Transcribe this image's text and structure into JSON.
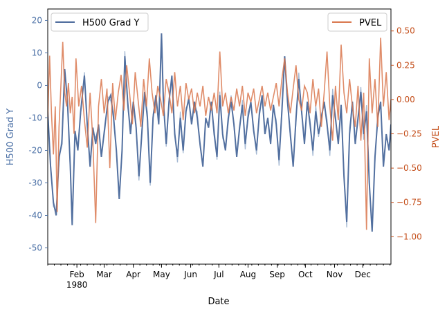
{
  "chart_data": {
    "type": "line",
    "xlabel": "Date",
    "x_tick_labels": [
      {
        "label": "Feb",
        "sublabel": "1980",
        "date": "1980-02-01"
      },
      {
        "label": "Mar",
        "date": "1980-03-01"
      },
      {
        "label": "Apr",
        "date": "1980-04-01"
      },
      {
        "label": "May",
        "date": "1980-05-01"
      },
      {
        "label": "Jun",
        "date": "1980-06-01"
      },
      {
        "label": "Jul",
        "date": "1980-07-01"
      },
      {
        "label": "Aug",
        "date": "1980-08-01"
      },
      {
        "label": "Sep",
        "date": "1980-09-01"
      },
      {
        "label": "Oct",
        "date": "1980-10-01"
      },
      {
        "label": "Nov",
        "date": "1980-11-01"
      },
      {
        "label": "Dec",
        "date": "1980-12-01"
      }
    ],
    "xlim": [
      "1980-01-01",
      "1980-12-31"
    ],
    "y_left": {
      "label": "H500 Grad Y",
      "ylim": [
        -55,
        23.5
      ],
      "ticks": [
        -50,
        -40,
        -30,
        -20,
        -10,
        0,
        10,
        20
      ],
      "color": "#4a6fa5"
    },
    "y_right": {
      "label": "PVEL",
      "ylim": [
        -1.2,
        0.66
      ],
      "ticks": [
        -1.0,
        -0.75,
        -0.5,
        -0.25,
        0.0,
        0.25,
        0.5
      ],
      "color": "#c44e1a"
    },
    "legend_left": {
      "placement": "top-left",
      "entry": "H500 Grad Y"
    },
    "legend_right": {
      "placement": "top-right",
      "entry": "PVEL"
    },
    "grid": false,
    "series": [
      {
        "name": "H500 Grad Y",
        "axis": "left",
        "color": "#4c6a9c",
        "raw_color": "#8fa8c8",
        "points": [
          [
            "1980-01-01",
            -8
          ],
          [
            "1980-01-04",
            -25
          ],
          [
            "1980-01-07",
            -36
          ],
          [
            "1980-01-10",
            -40
          ],
          [
            "1980-01-13",
            -22
          ],
          [
            "1980-01-16",
            -18
          ],
          [
            "1980-01-19",
            5
          ],
          [
            "1980-01-22",
            -5
          ],
          [
            "1980-01-25",
            -25
          ],
          [
            "1980-01-27",
            -43
          ],
          [
            "1980-01-30",
            -14
          ],
          [
            "1980-02-02",
            -20
          ],
          [
            "1980-02-05",
            -8
          ],
          [
            "1980-02-09",
            3
          ],
          [
            "1980-02-12",
            -12
          ],
          [
            "1980-02-15",
            -25
          ],
          [
            "1980-02-18",
            -13
          ],
          [
            "1980-02-21",
            -18
          ],
          [
            "1980-02-24",
            -12
          ],
          [
            "1980-02-27",
            -22
          ],
          [
            "1980-03-02",
            -12
          ],
          [
            "1980-03-05",
            -5
          ],
          [
            "1980-03-08",
            -3
          ],
          [
            "1980-03-11",
            -10
          ],
          [
            "1980-03-14",
            -20
          ],
          [
            "1980-03-17",
            -35
          ],
          [
            "1980-03-20",
            -20
          ],
          [
            "1980-03-23",
            9
          ],
          [
            "1980-03-26",
            -5
          ],
          [
            "1980-03-29",
            -15
          ],
          [
            "1980-04-01",
            -5
          ],
          [
            "1980-04-04",
            -13
          ],
          [
            "1980-04-07",
            -28
          ],
          [
            "1980-04-10",
            -15
          ],
          [
            "1980-04-13",
            -2
          ],
          [
            "1980-04-16",
            -10
          ],
          [
            "1980-04-19",
            -30
          ],
          [
            "1980-04-22",
            -10
          ],
          [
            "1980-04-25",
            -3
          ],
          [
            "1980-04-28",
            -12
          ],
          [
            "1980-05-01",
            16
          ],
          [
            "1980-05-03",
            -5
          ],
          [
            "1980-05-06",
            -18
          ],
          [
            "1980-05-09",
            -5
          ],
          [
            "1980-05-12",
            3
          ],
          [
            "1980-05-15",
            -15
          ],
          [
            "1980-05-18",
            -22
          ],
          [
            "1980-05-21",
            -10
          ],
          [
            "1980-05-24",
            -20
          ],
          [
            "1980-05-27",
            -8
          ],
          [
            "1980-05-30",
            -4
          ],
          [
            "1980-06-02",
            -12
          ],
          [
            "1980-06-05",
            -5
          ],
          [
            "1980-06-08",
            -10
          ],
          [
            "1980-06-11",
            -18
          ],
          [
            "1980-06-14",
            -25
          ],
          [
            "1980-06-17",
            -10
          ],
          [
            "1980-06-20",
            -13
          ],
          [
            "1980-06-23",
            -5
          ],
          [
            "1980-06-26",
            -15
          ],
          [
            "1980-06-29",
            -22
          ],
          [
            "1980-07-02",
            -3
          ],
          [
            "1980-07-05",
            -15
          ],
          [
            "1980-07-08",
            -20
          ],
          [
            "1980-07-11",
            -10
          ],
          [
            "1980-07-14",
            -5
          ],
          [
            "1980-07-17",
            -12
          ],
          [
            "1980-07-20",
            -22
          ],
          [
            "1980-07-23",
            -13
          ],
          [
            "1980-07-26",
            -6
          ],
          [
            "1980-07-29",
            -18
          ],
          [
            "1980-08-01",
            -10
          ],
          [
            "1980-08-04",
            -5
          ],
          [
            "1980-08-07",
            -14
          ],
          [
            "1980-08-10",
            -20
          ],
          [
            "1980-08-13",
            -9
          ],
          [
            "1980-08-16",
            -3
          ],
          [
            "1980-08-19",
            -15
          ],
          [
            "1980-08-22",
            -10
          ],
          [
            "1980-08-25",
            -18
          ],
          [
            "1980-08-28",
            -6
          ],
          [
            "1980-08-31",
            -12
          ],
          [
            "1980-09-03",
            -23
          ],
          [
            "1980-09-06",
            -8
          ],
          [
            "1980-09-09",
            9
          ],
          [
            "1980-09-12",
            -5
          ],
          [
            "1980-09-15",
            -15
          ],
          [
            "1980-09-18",
            -25
          ],
          [
            "1980-09-21",
            -10
          ],
          [
            "1980-09-24",
            2
          ],
          [
            "1980-09-27",
            -8
          ],
          [
            "1980-09-30",
            -18
          ],
          [
            "1980-10-03",
            -5
          ],
          [
            "1980-10-06",
            -12
          ],
          [
            "1980-10-09",
            -20
          ],
          [
            "1980-10-12",
            -8
          ],
          [
            "1980-10-15",
            -15
          ],
          [
            "1980-10-18",
            -10
          ],
          [
            "1980-10-21",
            -5
          ],
          [
            "1980-10-24",
            -12
          ],
          [
            "1980-10-27",
            -20
          ],
          [
            "1980-10-30",
            -3
          ],
          [
            "1980-11-02",
            -10
          ],
          [
            "1980-11-05",
            -18
          ],
          [
            "1980-11-08",
            -6
          ],
          [
            "1980-11-11",
            -28
          ],
          [
            "1980-11-14",
            -42
          ],
          [
            "1980-11-17",
            -15
          ],
          [
            "1980-11-20",
            -5
          ],
          [
            "1980-11-23",
            -18
          ],
          [
            "1980-11-26",
            -10
          ],
          [
            "1980-11-29",
            -2
          ],
          [
            "1980-12-02",
            -15
          ],
          [
            "1980-12-05",
            -8
          ],
          [
            "1980-12-08",
            -30
          ],
          [
            "1980-12-11",
            -45
          ],
          [
            "1980-12-14",
            -22
          ],
          [
            "1980-12-17",
            -10
          ],
          [
            "1980-12-20",
            -5
          ],
          [
            "1980-12-23",
            -25
          ],
          [
            "1980-12-26",
            -15
          ],
          [
            "1980-12-29",
            -20
          ],
          [
            "1980-12-31",
            -12
          ]
        ]
      },
      {
        "name": "PVEL",
        "axis": "right",
        "color": "#d9774d",
        "points": [
          [
            "1980-01-01",
            -0.15
          ],
          [
            "1980-01-03",
            0.32
          ],
          [
            "1980-01-05",
            -0.1
          ],
          [
            "1980-01-07",
            -0.4
          ],
          [
            "1980-01-09",
            -0.05
          ],
          [
            "1980-01-11",
            -0.82
          ],
          [
            "1980-01-13",
            -0.2
          ],
          [
            "1980-01-15",
            0.1
          ],
          [
            "1980-01-17",
            0.42
          ],
          [
            "1980-01-19",
            0.05
          ],
          [
            "1980-01-21",
            -0.05
          ],
          [
            "1980-01-23",
            0.12
          ],
          [
            "1980-01-25",
            -0.1
          ],
          [
            "1980-01-27",
            0.02
          ],
          [
            "1980-01-29",
            -0.25
          ],
          [
            "1980-01-31",
            0.3
          ],
          [
            "1980-02-03",
            -0.05
          ],
          [
            "1980-02-06",
            0.1
          ],
          [
            "1980-02-09",
            -0.15
          ],
          [
            "1980-02-12",
            -0.35
          ],
          [
            "1980-02-15",
            0.05
          ],
          [
            "1980-02-18",
            -0.3
          ],
          [
            "1980-02-21",
            -0.9
          ],
          [
            "1980-02-24",
            -0.05
          ],
          [
            "1980-02-27",
            0.15
          ],
          [
            "1980-03-01",
            -0.1
          ],
          [
            "1980-03-04",
            0.08
          ],
          [
            "1980-03-07",
            -0.5
          ],
          [
            "1980-03-10",
            0.12
          ],
          [
            "1980-03-13",
            -0.15
          ],
          [
            "1980-03-16",
            0.05
          ],
          [
            "1980-03-19",
            0.18
          ],
          [
            "1980-03-22",
            -0.08
          ],
          [
            "1980-03-25",
            0.25
          ],
          [
            "1980-03-28",
            0.05
          ],
          [
            "1980-03-31",
            -0.18
          ],
          [
            "1980-04-03",
            0.2
          ],
          [
            "1980-04-06",
            0.0
          ],
          [
            "1980-04-09",
            -0.2
          ],
          [
            "1980-04-12",
            0.15
          ],
          [
            "1980-04-15",
            -0.05
          ],
          [
            "1980-04-18",
            0.3
          ],
          [
            "1980-04-21",
            0.05
          ],
          [
            "1980-04-24",
            -0.1
          ],
          [
            "1980-04-27",
            0.1
          ],
          [
            "1980-04-30",
            0.0
          ],
          [
            "1980-05-03",
            -0.12
          ],
          [
            "1980-05-06",
            0.15
          ],
          [
            "1980-05-09",
            0.05
          ],
          [
            "1980-05-12",
            -0.1
          ],
          [
            "1980-05-15",
            0.2
          ],
          [
            "1980-05-18",
            -0.05
          ],
          [
            "1980-05-21",
            0.1
          ],
          [
            "1980-05-24",
            -0.15
          ],
          [
            "1980-05-27",
            0.12
          ],
          [
            "1980-05-30",
            0.0
          ],
          [
            "1980-06-02",
            0.08
          ],
          [
            "1980-06-05",
            -0.1
          ],
          [
            "1980-06-08",
            0.05
          ],
          [
            "1980-06-11",
            -0.05
          ],
          [
            "1980-06-14",
            0.1
          ],
          [
            "1980-06-17",
            -0.12
          ],
          [
            "1980-06-20",
            0.02
          ],
          [
            "1980-06-23",
            -0.08
          ],
          [
            "1980-06-26",
            0.05
          ],
          [
            "1980-06-29",
            -0.1
          ],
          [
            "1980-07-02",
            0.35
          ],
          [
            "1980-07-05",
            -0.05
          ],
          [
            "1980-07-08",
            0.05
          ],
          [
            "1980-07-11",
            -0.1
          ],
          [
            "1980-07-14",
            0.02
          ],
          [
            "1980-07-17",
            -0.08
          ],
          [
            "1980-07-20",
            0.08
          ],
          [
            "1980-07-23",
            -0.05
          ],
          [
            "1980-07-26",
            0.1
          ],
          [
            "1980-07-29",
            -0.12
          ],
          [
            "1980-08-01",
            0.05
          ],
          [
            "1980-08-04",
            -0.02
          ],
          [
            "1980-08-07",
            0.08
          ],
          [
            "1980-08-10",
            -0.1
          ],
          [
            "1980-08-13",
            0.0
          ],
          [
            "1980-08-16",
            0.1
          ],
          [
            "1980-08-19",
            -0.05
          ],
          [
            "1980-08-22",
            0.05
          ],
          [
            "1980-08-25",
            -0.08
          ],
          [
            "1980-08-28",
            0.02
          ],
          [
            "1980-08-31",
            0.12
          ],
          [
            "1980-09-03",
            -0.05
          ],
          [
            "1980-09-06",
            0.15
          ],
          [
            "1980-09-09",
            0.3
          ],
          [
            "1980-09-12",
            0.05
          ],
          [
            "1980-09-15",
            -0.1
          ],
          [
            "1980-09-18",
            0.08
          ],
          [
            "1980-09-21",
            0.25
          ],
          [
            "1980-09-24",
            0.0
          ],
          [
            "1980-09-27",
            -0.08
          ],
          [
            "1980-09-30",
            0.1
          ],
          [
            "1980-10-03",
            0.05
          ],
          [
            "1980-10-06",
            -0.1
          ],
          [
            "1980-10-09",
            0.15
          ],
          [
            "1980-10-12",
            -0.05
          ],
          [
            "1980-10-15",
            0.08
          ],
          [
            "1980-10-18",
            -0.2
          ],
          [
            "1980-10-21",
            0.05
          ],
          [
            "1980-10-24",
            0.35
          ],
          [
            "1980-10-27",
            -0.05
          ],
          [
            "1980-10-30",
            -0.3
          ],
          [
            "1980-11-02",
            0.1
          ],
          [
            "1980-11-05",
            -0.15
          ],
          [
            "1980-11-08",
            0.4
          ],
          [
            "1980-11-11",
            0.05
          ],
          [
            "1980-11-14",
            -0.1
          ],
          [
            "1980-11-17",
            0.15
          ],
          [
            "1980-11-20",
            -0.05
          ],
          [
            "1980-11-23",
            -0.2
          ],
          [
            "1980-11-26",
            0.1
          ],
          [
            "1980-11-29",
            -0.3
          ],
          [
            "1980-12-02",
            0.05
          ],
          [
            "1980-12-05",
            -0.95
          ],
          [
            "1980-12-08",
            0.3
          ],
          [
            "1980-12-11",
            -0.1
          ],
          [
            "1980-12-14",
            0.15
          ],
          [
            "1980-12-17",
            -0.2
          ],
          [
            "1980-12-20",
            0.45
          ],
          [
            "1980-12-23",
            -0.05
          ],
          [
            "1980-12-26",
            0.2
          ],
          [
            "1980-12-29",
            -0.15
          ],
          [
            "1980-12-31",
            0.0
          ]
        ]
      }
    ]
  }
}
